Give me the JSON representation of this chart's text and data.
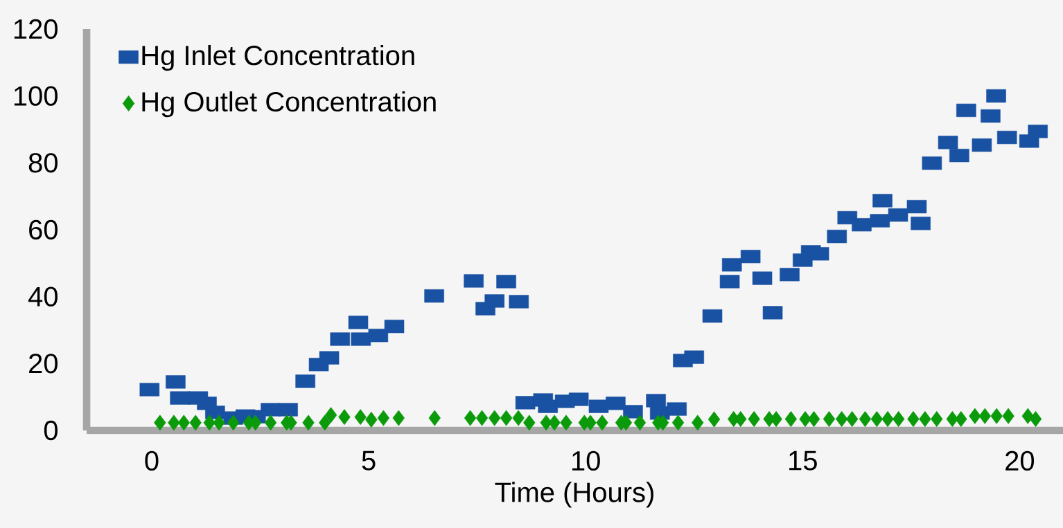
{
  "chart_data": {
    "type": "scatter",
    "xlabel": "Time (Hours)",
    "xlim": [
      -1.5,
      21
    ],
    "xticks": [
      0,
      5,
      10,
      15,
      20
    ],
    "ylim": [
      0,
      120
    ],
    "yticks": [
      0,
      20,
      40,
      60,
      80,
      100,
      120
    ],
    "grid": false,
    "legend": "top left",
    "series": [
      {
        "name": "Hg Inlet Concentration",
        "color": "#1a52a3",
        "marker": "square",
        "x": [
          -0.05,
          0.55,
          0.65,
          1.07,
          1.27,
          1.46,
          1.88,
          2.16,
          2.4,
          2.74,
          3.14,
          3.54,
          3.85,
          4.09,
          4.34,
          4.76,
          4.82,
          5.22,
          5.59,
          6.51,
          7.42,
          7.69,
          7.9,
          8.17,
          8.46,
          8.61,
          9.02,
          9.13,
          9.52,
          9.84,
          10.3,
          10.69,
          11.09,
          11.62,
          11.71,
          12.1,
          12.24,
          12.5,
          12.92,
          13.32,
          13.37,
          13.8,
          14.07,
          14.31,
          14.7,
          15.0,
          15.19,
          15.38,
          15.79,
          16.03,
          16.36,
          16.78,
          16.84,
          17.2,
          17.63,
          17.72,
          17.98,
          18.35,
          18.61,
          18.77,
          19.13,
          19.33,
          19.46,
          19.71,
          20.22,
          20.42
        ],
        "values": [
          12.2,
          14.5,
          9.7,
          9.7,
          8.1,
          5.4,
          3.7,
          4.3,
          4.1,
          6.2,
          6.2,
          14.7,
          19.7,
          21.7,
          27.3,
          32.3,
          27.3,
          28.4,
          31.1,
          40.2,
          44.7,
          36.4,
          38.7,
          44.5,
          38.5,
          8.3,
          9.1,
          7.2,
          8.7,
          9.3,
          7.2,
          8.1,
          5.6,
          8.9,
          5.2,
          6.4,
          20.9,
          21.9,
          34.2,
          44.5,
          49.5,
          52.0,
          45.5,
          35.2,
          46.6,
          50.9,
          53.4,
          52.8,
          58.0,
          63.6,
          61.5,
          62.7,
          68.7,
          64.4,
          66.9,
          61.9,
          79.9,
          86.1,
          82.2,
          95.7,
          85.3,
          94.0,
          100.0,
          87.6,
          86.5,
          89.4
        ]
      },
      {
        "name": "Hg Outlet Concentration",
        "color": "#0a9a0a",
        "marker": "diamond",
        "x": [
          0.19,
          0.51,
          0.74,
          1.01,
          1.33,
          1.55,
          1.88,
          2.24,
          2.39,
          2.74,
          3.11,
          3.21,
          3.61,
          3.99,
          4.13,
          4.44,
          4.81,
          5.06,
          5.34,
          5.69,
          6.52,
          7.34,
          7.61,
          7.9,
          8.17,
          8.45,
          8.7,
          9.09,
          9.28,
          9.55,
          9.97,
          10.11,
          10.38,
          10.82,
          10.93,
          11.25,
          11.67,
          11.78,
          12.13,
          12.58,
          12.96,
          13.41,
          13.57,
          13.88,
          14.23,
          14.39,
          14.73,
          15.06,
          15.26,
          15.61,
          15.9,
          16.14,
          16.44,
          16.71,
          16.96,
          17.21,
          17.55,
          17.82,
          18.09,
          18.45,
          18.65,
          18.97,
          19.2,
          19.47,
          19.74,
          20.19,
          20.37
        ],
        "values": [
          2.3,
          2.3,
          2.3,
          2.3,
          2.3,
          2.3,
          2.3,
          2.3,
          2.3,
          2.3,
          2.3,
          2.3,
          2.3,
          2.3,
          4.6,
          4.0,
          4.0,
          3.2,
          3.7,
          3.7,
          3.7,
          3.7,
          3.7,
          3.7,
          3.7,
          3.7,
          2.3,
          2.3,
          2.3,
          2.3,
          2.3,
          2.3,
          2.3,
          2.3,
          2.3,
          2.3,
          2.3,
          2.3,
          2.3,
          2.3,
          3.3,
          3.4,
          3.4,
          3.4,
          3.4,
          3.4,
          3.4,
          3.4,
          3.4,
          3.4,
          3.4,
          3.4,
          3.4,
          3.4,
          3.4,
          3.4,
          3.4,
          3.4,
          3.4,
          3.4,
          3.4,
          4.3,
          4.3,
          4.3,
          4.3,
          4.3,
          3.4
        ]
      }
    ]
  }
}
